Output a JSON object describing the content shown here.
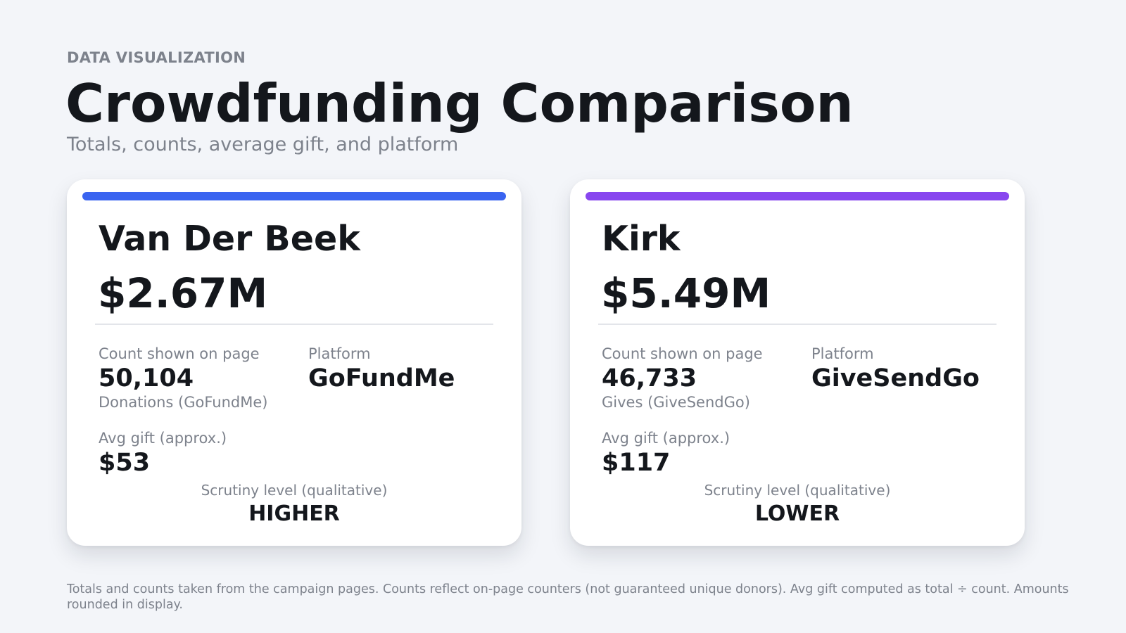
{
  "header": {
    "eyebrow": "DATA VISUALIZATION",
    "title": "Crowdfunding Comparison",
    "subtitle": "Totals, counts, average gift, and platform"
  },
  "cards": [
    {
      "name": "Van Der Beek",
      "total": "$2.67M",
      "accent_color": "#3a64f0",
      "count_label": "Count shown on page",
      "count_value": "50,104",
      "count_note": "Donations (GoFundMe)",
      "platform_label": "Platform",
      "platform_value": "GoFundMe",
      "avg_label": "Avg gift (approx.)",
      "avg_value": "$53",
      "scrutiny_label": "Scrutiny level (qualitative)",
      "scrutiny_value": "HIGHER"
    },
    {
      "name": "Kirk",
      "total": "$5.49M",
      "accent_color": "#8846ef",
      "count_label": "Count shown on page",
      "count_value": "46,733",
      "count_note": "Gives (GiveSendGo)",
      "platform_label": "Platform",
      "platform_value": "GiveSendGo",
      "avg_label": "Avg gift (approx.)",
      "avg_value": "$117",
      "scrutiny_label": "Scrutiny level (qualitative)",
      "scrutiny_value": "LOWER"
    }
  ],
  "footnote": "Totals and counts taken from the campaign pages. Counts reflect on-page counters (not guaranteed unique donors). Avg gift computed as total ÷ count. Amounts rounded in display."
}
